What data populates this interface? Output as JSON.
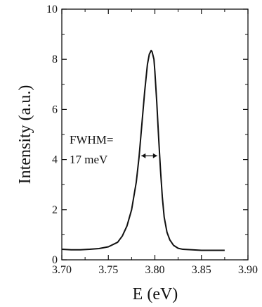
{
  "chart_data": {
    "type": "line",
    "title": "",
    "xlabel": "E (eV)",
    "ylabel": "Intensity (a.u.)",
    "xlim": [
      3.7,
      3.9
    ],
    "ylim": [
      0,
      10
    ],
    "x_ticks": [
      "3.70",
      "3.75",
      "3.80",
      "3.85",
      "3.90"
    ],
    "y_ticks": [
      "0",
      "2",
      "4",
      "6",
      "8",
      "10"
    ],
    "grid": false,
    "series": [
      {
        "x": [
          3.7,
          3.71,
          3.72,
          3.73,
          3.74,
          3.75,
          3.76,
          3.765,
          3.77,
          3.775,
          3.78,
          3.783,
          3.786,
          3.789,
          3.792,
          3.794,
          3.796,
          3.797,
          3.798,
          3.799,
          3.8,
          3.802,
          3.804,
          3.806,
          3.808,
          3.81,
          3.813,
          3.816,
          3.82,
          3.825,
          3.83,
          3.84,
          3.85,
          3.86,
          3.87,
          3.875
        ],
        "values": [
          0.42,
          0.4,
          0.4,
          0.42,
          0.45,
          0.52,
          0.7,
          0.95,
          1.35,
          2.0,
          3.1,
          4.1,
          5.4,
          6.7,
          7.8,
          8.2,
          8.35,
          8.3,
          8.15,
          8.0,
          7.5,
          6.3,
          4.9,
          3.6,
          2.5,
          1.7,
          1.1,
          0.8,
          0.58,
          0.46,
          0.42,
          0.4,
          0.38,
          0.38,
          0.38,
          0.38
        ]
      }
    ],
    "annotations": [
      {
        "lines": [
          "FWHM=",
          "17 meV"
        ],
        "arrow_x": [
          3.7855,
          3.8025
        ],
        "arrow_y": 4.15
      }
    ]
  }
}
